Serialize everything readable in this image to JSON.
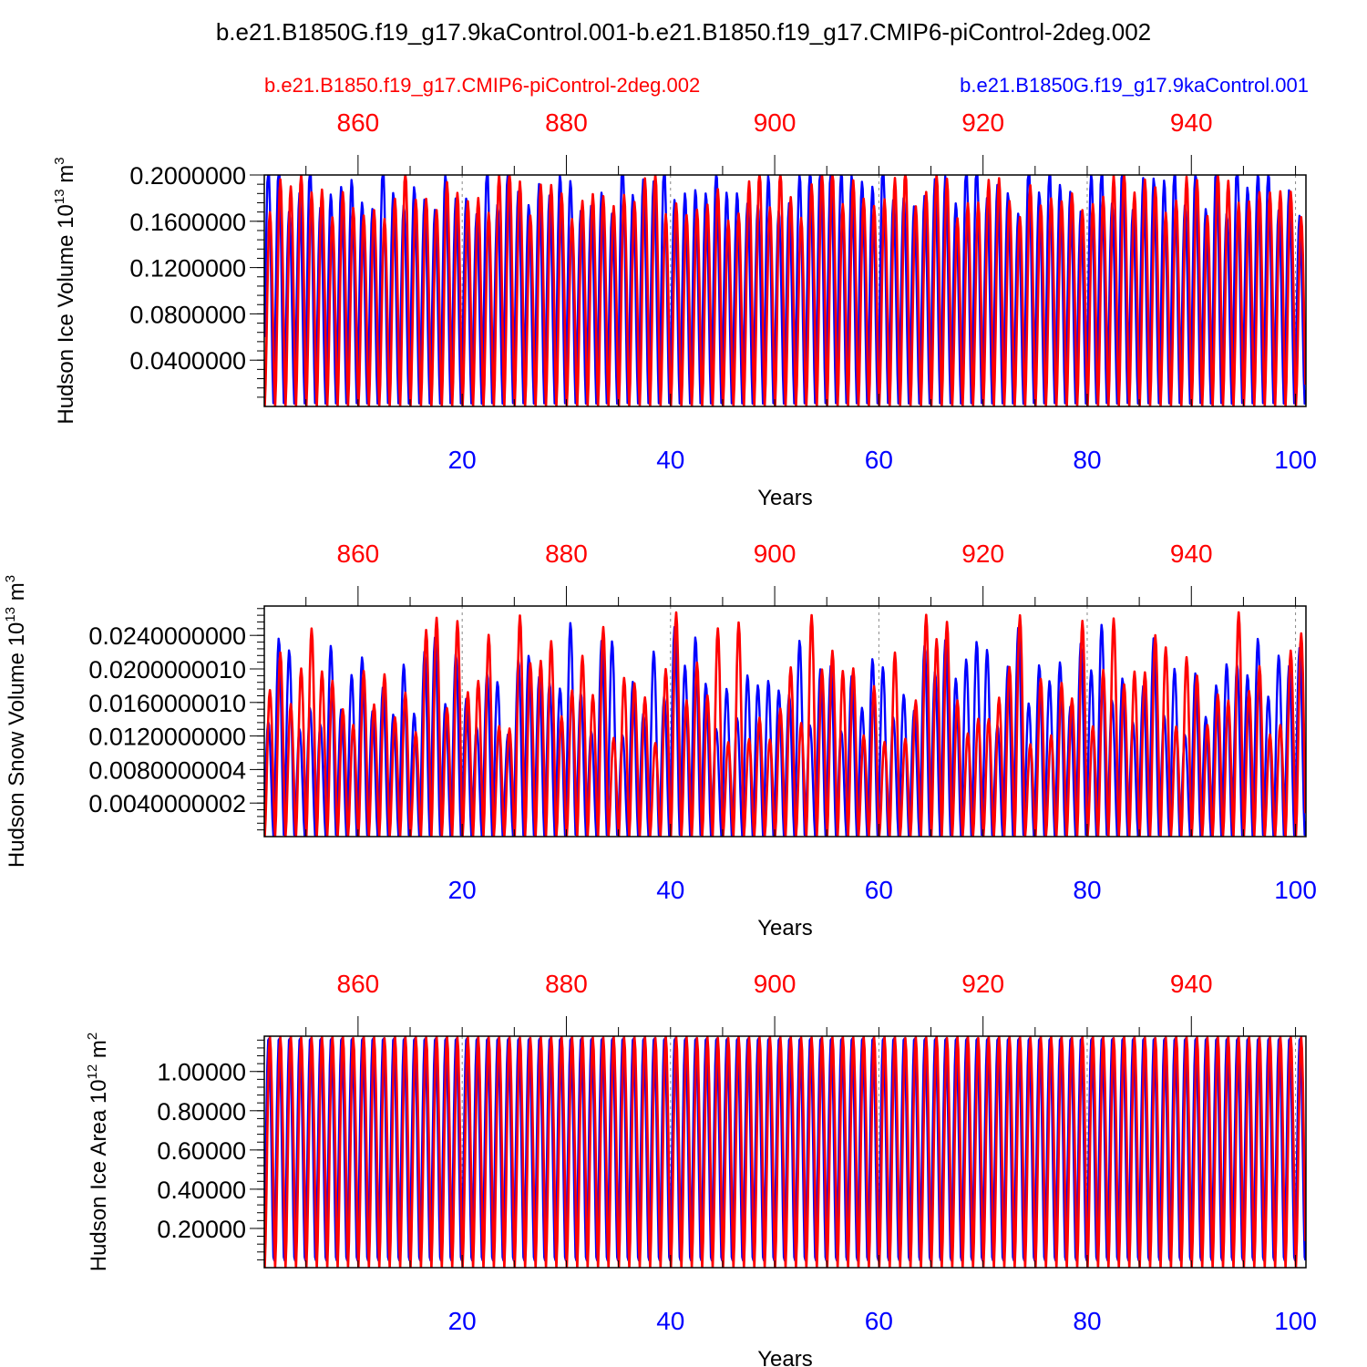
{
  "title": "b.e21.B1850G.f19_g17.9kaControl.001-b.e21.B1850.f19_g17.CMIP6-piControl-2deg.002",
  "legend": {
    "red_label": "b.e21.B1850.f19_g17.CMIP6-piControl-2deg.002",
    "blue_label": "b.e21.B1850G.f19_g17.9kaControl.001"
  },
  "colors": {
    "red": "#ff0000",
    "blue": "#0000ff",
    "axis": "#000000",
    "grid": "#888888"
  },
  "chart_data": [
    {
      "type": "line",
      "ylabel": "Hudson Ice Volume",
      "ylabel_unit_base": "10",
      "ylabel_unit_exp": "13",
      "ylabel_unit": "m",
      "ylabel_unit_pow": "3",
      "xlabel": "Years",
      "ylim": [
        0.0,
        0.2
      ],
      "yticks": [
        0.04,
        0.08,
        0.12,
        0.16,
        0.2
      ],
      "ytick_labels": [
        "0.0400000",
        "0.0800000",
        "0.1200000",
        "0.1600000",
        "0.2000000"
      ],
      "yminor_step": 0.008,
      "bottom_xlim": [
        1,
        101
      ],
      "bottom_xticks": [
        20,
        40,
        60,
        80,
        100
      ],
      "top_xlim": [
        851,
        951
      ],
      "top_xticks": [
        860,
        880,
        900,
        920,
        940
      ],
      "cycles": 100,
      "series": [
        {
          "name": "b.e21.B1850G.f19_g17.9kaControl.001",
          "color": "blue",
          "min": 0.001,
          "max_range": [
            0.165,
            0.215
          ],
          "phase": 0.15
        },
        {
          "name": "b.e21.B1850.f19_g17.CMIP6-piControl-2deg.002",
          "color": "red",
          "min": 0.0,
          "max_range": [
            0.16,
            0.207
          ],
          "phase": 0.0
        }
      ]
    },
    {
      "type": "line",
      "ylabel": "Hudson Snow Volume",
      "ylabel_unit_base": "10",
      "ylabel_unit_exp": "13",
      "ylabel_unit": "m",
      "ylabel_unit_pow": "3",
      "xlabel": "Years",
      "ylim": [
        0.0,
        0.0275
      ],
      "yticks": [
        0.004,
        0.008,
        0.012,
        0.016,
        0.02,
        0.024
      ],
      "ytick_labels": [
        "0.0040000002",
        "0.0080000004",
        "0.0120000000",
        "0.0160000010",
        "0.0200000010",
        "0.0240000000"
      ],
      "yminor_step": 0.0008,
      "bottom_xlim": [
        1,
        101
      ],
      "bottom_xticks": [
        20,
        40,
        60,
        80,
        100
      ],
      "top_xlim": [
        851,
        951
      ],
      "top_xticks": [
        860,
        880,
        900,
        920,
        940
      ],
      "cycles": 100,
      "series": [
        {
          "name": "b.e21.B1850G.f19_g17.9kaControl.001",
          "color": "blue",
          "min": 0.0,
          "max_range": [
            0.012,
            0.026
          ],
          "phase": 0.15
        },
        {
          "name": "b.e21.B1850.f19_g17.CMIP6-piControl-2deg.002",
          "color": "red",
          "min": 0.0,
          "max_range": [
            0.011,
            0.027
          ],
          "phase": 0.0
        }
      ]
    },
    {
      "type": "line",
      "ylabel": "Hudson Ice Area",
      "ylabel_unit_base": "10",
      "ylabel_unit_exp": "12",
      "ylabel_unit": "m",
      "ylabel_unit_pow": "2",
      "xlabel": "Years",
      "ylim": [
        0.0,
        1.18
      ],
      "yticks": [
        0.2,
        0.4,
        0.6,
        0.8,
        1.0
      ],
      "ytick_labels": [
        "0.20000",
        "0.40000",
        "0.60000",
        "0.80000",
        "1.00000"
      ],
      "yminor_step": 0.04,
      "bottom_xlim": [
        1,
        101
      ],
      "bottom_xticks": [
        20,
        40,
        60,
        80,
        100
      ],
      "top_xlim": [
        851,
        951
      ],
      "top_xticks": [
        860,
        880,
        900,
        920,
        940
      ],
      "cycles": 100,
      "series": [
        {
          "name": "b.e21.B1850G.f19_g17.9kaControl.001",
          "color": "blue",
          "min": 0.0,
          "max_range": [
            1.18,
            1.18
          ],
          "phase": 0.12
        },
        {
          "name": "b.e21.B1850.f19_g17.CMIP6-piControl-2deg.002",
          "color": "red",
          "min": 0.0,
          "max_range": [
            1.17,
            1.18
          ],
          "phase": 0.0
        }
      ]
    }
  ]
}
